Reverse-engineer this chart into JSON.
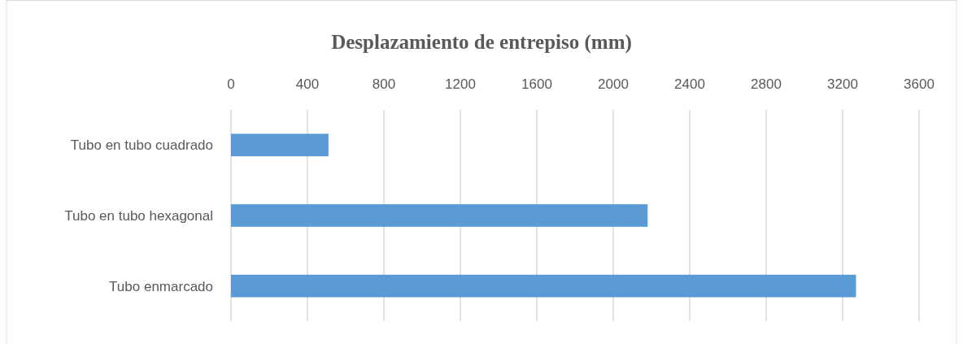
{
  "chart_data": {
    "type": "bar",
    "orientation": "horizontal",
    "title": "Desplazamiento de entrepiso (mm)",
    "categories": [
      "Tubo en tubo cuadrado",
      "Tubo en tubo hexagonal",
      "Tubo enmarcado"
    ],
    "values": [
      510,
      2180,
      3270
    ],
    "color": "#5b9bd5",
    "xlim": [
      0,
      3600
    ],
    "xticks": [
      0,
      400,
      800,
      1200,
      1600,
      2000,
      2400,
      2800,
      3200,
      3600
    ],
    "grid": "x"
  }
}
